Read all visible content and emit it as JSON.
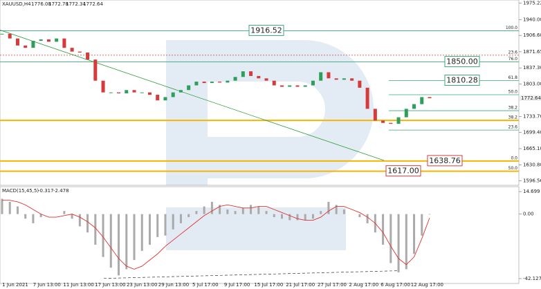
{
  "chart_data": {
    "type": "candlestick",
    "symbol": "XAUUSD,H4",
    "ohlc": [
      1776.08,
      1772.78,
      1772.34,
      1772.64
    ],
    "ylim": [
      1587,
      1982
    ],
    "yticks": [
      1975.22,
      {
        "value": 1940,
        "label": "1940.00"
      },
      {
        "value": 1906.6,
        "label": "1906.60"
      },
      1871.65,
      {
        "value": 1837.3,
        "label": "1837.30"
      },
      {
        "value": 1803,
        "label": "1803.00"
      },
      {
        "value": 1733.7,
        "label": "1733.70"
      },
      {
        "value": 1699.4,
        "label": "1699.40"
      },
      {
        "value": 1665.1,
        "label": "1665.10"
      },
      {
        "value": 1630.8,
        "label": "1630.80"
      },
      1596.56
    ],
    "x_labels": [
      "1 Jun 2021",
      "7 Jun 13:00",
      "11 Jun 13:00",
      "17 Jun 13:00",
      "23 Jun 13:00",
      "29 Jun 13:00",
      "5 Jul 17:00",
      "9 Jul 17:00",
      "15 Jul 17:00",
      "21 Jul 17:00",
      "27 Jul 17:00",
      "2 Aug 17:00",
      "6 Aug 17:00",
      "12 Aug 17:00"
    ],
    "up_color": "#2e9e5b",
    "down_color": "#d63b3b",
    "closes": [
      1910,
      1900,
      1885,
      1880,
      1895,
      1898,
      1893,
      1900,
      1880,
      1872,
      1870,
      1855,
      1810,
      1785,
      1785,
      1783,
      1790,
      1785,
      1785,
      1780,
      1768,
      1775,
      1785,
      1790,
      1800,
      1808,
      1805,
      1808,
      1806,
      1810,
      1818,
      1830,
      1820,
      1815,
      1810,
      1800,
      1797,
      1800,
      1797,
      1800,
      1810,
      1828,
      1815,
      1812,
      1815,
      1810,
      1795,
      1750,
      1725,
      1720,
      1718,
      1732,
      1750,
      1760,
      1775,
      1772.64
    ],
    "trendline": [
      1918,
      1640
    ],
    "levels": [
      {
        "value": 1916.52,
        "label": "100.0",
        "color": "#3aa67a",
        "span": "full"
      },
      {
        "value": 1864.4,
        "label": "23.6",
        "color": "#d9534f",
        "span": "full"
      },
      {
        "value": 1850,
        "label": "76.0",
        "color": "#3aa67a",
        "span": "full"
      },
      {
        "value": 1810.28,
        "label": "61.8",
        "color": "#3aa67a",
        "span": "right"
      },
      {
        "value": 1780.1,
        "label": "50.0",
        "color": "#3aa67a",
        "span": "right"
      },
      {
        "value": 1746.1,
        "label": "38.2",
        "color": "#3aa67a",
        "span": "right"
      },
      {
        "value": 1725.4,
        "label": "38.2",
        "color": "#f5b400",
        "span": "full"
      },
      {
        "value": 1704.7,
        "label": "23.6",
        "color": "#3aa67a",
        "span": "right"
      },
      {
        "value": 1638.76,
        "label": "0.0",
        "color": "#f5b400",
        "span": "full"
      },
      {
        "value": 1617,
        "label": "50.0",
        "color": "#f5b400",
        "span": "full"
      }
    ],
    "callouts": [
      {
        "value": 1916.52,
        "color": "#3aa67a"
      },
      {
        "value": 1850,
        "label": "1850.00",
        "color": "#3aa67a"
      },
      {
        "value": 1810.28,
        "color": "#3aa67a"
      },
      {
        "value": 1638.76,
        "color": "#d63b3b"
      },
      {
        "value": 1617,
        "label": "1617.00",
        "color": "#d63b3b"
      }
    ],
    "macd": {
      "params_label": "MACD(15,45,5)",
      "values": [
        -0.317,
        -2.478
      ],
      "ylim": [
        -45.3,
        17.9
      ],
      "yticks": [
        14.699,
        {
          "value": 0,
          "label": "0.00"
        },
        -42.127
      ],
      "histogram_color": "#aaaaaa",
      "signal_color": "#e03030",
      "histogram": [
        10,
        8,
        5,
        -3,
        -6,
        -2,
        0,
        0,
        2,
        -3,
        -8,
        -12,
        -20,
        -28,
        -35,
        -40,
        -36,
        -30,
        -24,
        -20,
        -15,
        -14,
        -10,
        -6,
        -2,
        2,
        5,
        8,
        6,
        3,
        2,
        4,
        6,
        5,
        2,
        -2,
        -3,
        -4,
        -4,
        -4,
        -3,
        2,
        8,
        6,
        3,
        0,
        -2,
        -6,
        -12,
        -20,
        -32,
        -38,
        -36,
        -26,
        -14,
        -0.317
      ],
      "signal": [
        9,
        9,
        8,
        6,
        3,
        0,
        -2,
        -2,
        -1,
        0,
        -2,
        -5,
        -9,
        -15,
        -22,
        -29,
        -34,
        -36,
        -34,
        -30,
        -26,
        -21,
        -17,
        -13,
        -9,
        -5,
        -1,
        2,
        5,
        6,
        5,
        4,
        4,
        5,
        5,
        3,
        1,
        -1,
        -3,
        -4,
        -4,
        -2,
        2,
        5,
        5,
        3,
        1,
        -2,
        -6,
        -12,
        -21,
        -29,
        -33,
        -28,
        -16,
        -2.478
      ],
      "trendline": [
        -42,
        -37
      ]
    }
  }
}
